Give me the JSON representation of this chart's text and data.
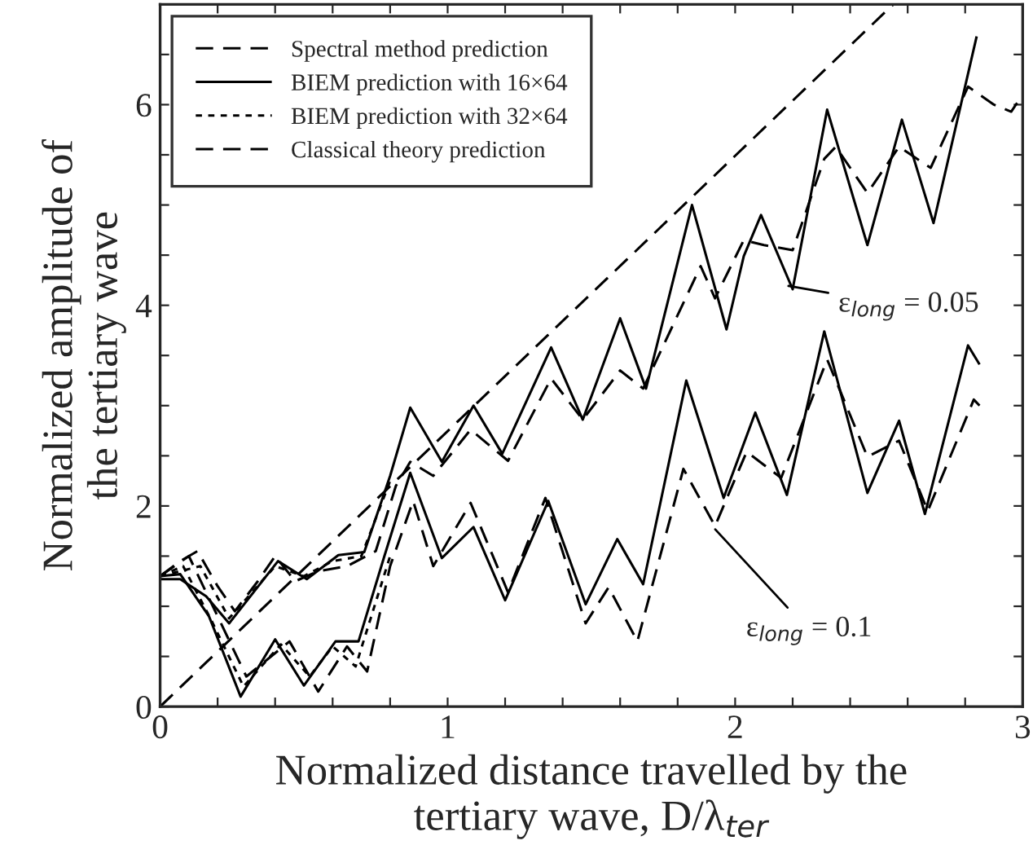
{
  "chart_data": {
    "type": "line",
    "xlabel": "Normalized distance travelled by the\ntertiary wave, D/λ$_{ter}$",
    "ylabel": "Normalized amplitude of\nthe tertiary wave",
    "xlim": [
      0,
      3
    ],
    "ylim": [
      0,
      7
    ],
    "xticks": [
      0,
      {
        "value": 0.2,
        "label": null
      },
      {
        "value": 0.4,
        "label": null
      },
      {
        "value": 0.6,
        "label": null
      },
      {
        "value": 0.8,
        "label": null
      },
      1,
      {
        "value": 1.2,
        "label": null
      },
      {
        "value": 1.4,
        "label": null
      },
      {
        "value": 1.6,
        "label": null
      },
      {
        "value": 1.8,
        "label": null
      },
      2,
      {
        "value": 2.2,
        "label": null
      },
      {
        "value": 2.4,
        "label": null
      },
      {
        "value": 2.6,
        "label": null
      },
      {
        "value": 2.8,
        "label": null
      },
      3
    ],
    "yticks": [
      0,
      {
        "value": 0.5,
        "label": null
      },
      {
        "value": 1,
        "label": null
      },
      {
        "value": 1.5,
        "label": null
      },
      2,
      {
        "value": 2.5,
        "label": null
      },
      {
        "value": 3,
        "label": null
      },
      {
        "value": 3.5,
        "label": null
      },
      4,
      {
        "value": 4.5,
        "label": null
      },
      {
        "value": 5,
        "label": null
      },
      {
        "value": 5.5,
        "label": null
      },
      6,
      {
        "value": 6.5,
        "label": null
      }
    ],
    "grid": false,
    "legend": "top left",
    "marker": "none",
    "series": [
      {
        "name": "Spectral method prediction",
        "color": "#000000",
        "line_style": "dashed",
        "x": [
          0,
          0.07,
          0.13,
          0.2,
          0.26,
          0.34,
          0.4,
          0.47,
          0.55,
          0.65,
          0.75,
          0.82,
          0.87,
          0.95,
          1.08,
          1.21,
          1.36,
          1.47,
          1.6,
          1.68,
          1.88,
          1.93,
          2.03,
          2.1,
          2.2,
          2.31,
          2.35,
          2.46,
          2.57,
          2.68,
          2.81,
          2.9,
          2.96,
          3.0
        ],
        "values": [
          1.3,
          1.45,
          1.55,
          1.2,
          0.95,
          1.25,
          1.5,
          1.25,
          1.35,
          1.4,
          1.55,
          2.2,
          2.44,
          2.3,
          2.76,
          2.45,
          3.27,
          2.86,
          3.35,
          3.17,
          4.39,
          4.07,
          4.65,
          4.6,
          4.55,
          5.46,
          5.58,
          5.12,
          5.58,
          5.37,
          6.18,
          6.0,
          5.93,
          6.1
        ]
      },
      {
        "name": "BIEM prediction with 16×64",
        "color": "#000000",
        "line_style": "solid",
        "x": [
          0,
          0.07,
          0.16,
          0.24,
          0.41,
          0.51,
          0.62,
          0.71,
          0.8,
          0.87,
          0.98,
          1.09,
          1.19,
          1.36,
          1.47,
          1.6,
          1.69,
          1.85,
          1.97,
          2.03,
          2.09,
          2.2,
          2.32,
          2.46,
          2.58,
          2.69,
          2.84
        ],
        "values": [
          1.27,
          1.27,
          1.1,
          0.83,
          1.45,
          1.27,
          1.51,
          1.54,
          2.3,
          2.98,
          2.44,
          3.0,
          2.52,
          3.58,
          2.86,
          3.87,
          3.17,
          5.0,
          3.76,
          4.49,
          4.9,
          4.16,
          5.95,
          4.6,
          5.85,
          4.82,
          6.68
        ]
      },
      {
        "name": "BIEM prediction with 32×64",
        "color": "#000000",
        "line_style": "dotted",
        "x": [
          0,
          0.07,
          0.14,
          0.24,
          0.4,
          0.5,
          0.6,
          0.7,
          0.8
        ],
        "values": [
          1.3,
          1.35,
          1.4,
          0.88,
          1.4,
          1.3,
          1.45,
          1.5,
          2.25
        ]
      },
      {
        "name": "Classical theory prediction",
        "color": "#000000",
        "line_style": "dashed",
        "x": [
          0,
          2.55
        ],
        "values": [
          0,
          7.0
        ]
      },
      {
        "color": "#000000",
        "line_style": "dashed",
        "x": [
          0,
          0.1,
          0.2,
          0.3,
          0.45,
          0.55,
          0.65,
          0.72,
          0.8,
          0.88,
          0.95,
          1.08,
          1.21,
          1.34,
          1.48,
          1.56,
          1.66,
          1.82,
          1.93,
          2.04,
          2.16,
          2.32,
          2.46,
          2.57,
          2.67,
          2.83,
          2.85
        ],
        "values": [
          1.3,
          1.5,
          0.9,
          0.3,
          0.65,
          0.15,
          0.6,
          0.35,
          1.4,
          2.05,
          1.4,
          2.03,
          1.14,
          2.08,
          0.83,
          1.19,
          0.65,
          2.37,
          1.8,
          2.54,
          2.28,
          3.46,
          2.49,
          2.65,
          1.95,
          3.06,
          3.0
        ]
      },
      {
        "color": "#000000",
        "line_style": "solid",
        "x": [
          0,
          0.07,
          0.17,
          0.28,
          0.4,
          0.5,
          0.61,
          0.69,
          0.78,
          0.87,
          0.98,
          1.09,
          1.2,
          1.35,
          1.48,
          1.59,
          1.68,
          1.83,
          1.96,
          2.07,
          2.18,
          2.31,
          2.46,
          2.57,
          2.66,
          2.81,
          2.85
        ],
        "values": [
          1.3,
          1.32,
          0.9,
          0.1,
          0.67,
          0.21,
          0.65,
          0.65,
          1.5,
          2.33,
          1.48,
          1.79,
          1.06,
          2.05,
          1.02,
          1.67,
          1.22,
          3.25,
          2.08,
          2.93,
          2.11,
          3.74,
          2.13,
          2.85,
          1.92,
          3.6,
          3.41
        ]
      },
      {
        "color": "#000000",
        "line_style": "dotted",
        "x": [
          0,
          0.08,
          0.18,
          0.29,
          0.42,
          0.52,
          0.6,
          0.68,
          0.8
        ],
        "values": [
          1.3,
          1.4,
          0.85,
          0.2,
          0.62,
          0.3,
          0.6,
          0.4,
          1.5
        ]
      }
    ],
    "annotations": [
      {
        "text": "ε$_{long}$ = 0.05",
        "x": 2.17,
        "y": 4.2
      },
      {
        "text": "ε$_{long}$ = 0.1",
        "x": 1.92,
        "y": 1.8
      }
    ]
  }
}
